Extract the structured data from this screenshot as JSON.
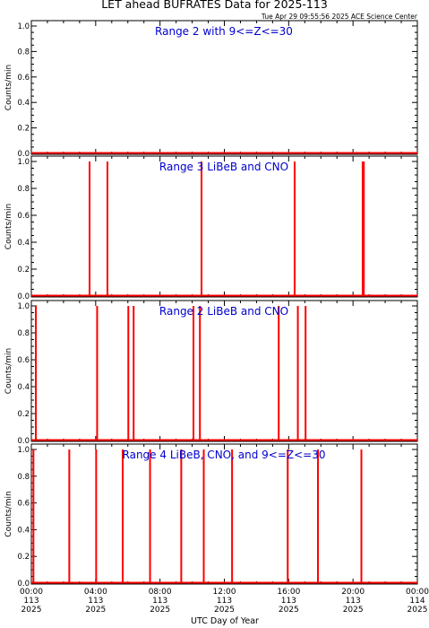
{
  "title": "LET ahead BUFRATES Data for 2025-113",
  "subtitle": "Tue Apr 29 09:55:56 2025 ACE Science Center",
  "xlabel": "UTC Day of Year",
  "colors": {
    "trace": "#ff0000",
    "label": "#0000cc",
    "axis": "#000000"
  },
  "x_ticks": [
    {
      "hours": 0,
      "time": "00:00",
      "doy": "113",
      "year": "2025"
    },
    {
      "hours": 4,
      "time": "04:00",
      "doy": "113",
      "year": "2025"
    },
    {
      "hours": 8,
      "time": "08:00",
      "doy": "113",
      "year": "2025"
    },
    {
      "hours": 12,
      "time": "12:00",
      "doy": "113",
      "year": "2025"
    },
    {
      "hours": 16,
      "time": "16:00",
      "doy": "113",
      "year": "2025"
    },
    {
      "hours": 20,
      "time": "20:00",
      "doy": "113",
      "year": "2025"
    },
    {
      "hours": 24,
      "time": "00:00",
      "doy": "114",
      "year": "2025"
    }
  ],
  "chart_data": [
    {
      "type": "line",
      "label": "Range 2 with 9<=Z<=30",
      "ylabel": "Counts/min",
      "xlim": [
        0,
        24
      ],
      "ylim": [
        0,
        1
      ],
      "yticks": [
        "0.0",
        "0.2",
        "0.4",
        "0.6",
        "0.8",
        "1.0"
      ],
      "spikes_hours": []
    },
    {
      "type": "line",
      "label": "Range 3 LiBeB and CNO",
      "ylabel": "Counts/min",
      "xlim": [
        0,
        24
      ],
      "ylim": [
        0,
        1
      ],
      "yticks": [
        "0.0",
        "0.2",
        "0.4",
        "0.6",
        "0.8",
        "1.0"
      ],
      "spikes_hours": [
        3.62,
        4.73,
        10.58,
        16.37,
        20.6,
        20.67
      ]
    },
    {
      "type": "line",
      "label": "Range 2 LiBeB and CNO",
      "ylabel": "Counts/min",
      "xlim": [
        0,
        24
      ],
      "ylim": [
        0,
        1
      ],
      "yticks": [
        "0.0",
        "0.2",
        "0.4",
        "0.6",
        "0.8",
        "1.0"
      ],
      "spikes_hours": [
        0.28,
        4.09,
        6.03,
        6.36,
        10.08,
        10.48,
        15.38,
        16.57,
        17.05
      ]
    },
    {
      "type": "line",
      "label": "Range 4 LiBeB, CNO, and 9<=Z<=30",
      "ylabel": "Counts/min",
      "xlim": [
        0,
        24
      ],
      "ylim": [
        0,
        1
      ],
      "yticks": [
        "0.0",
        "0.2",
        "0.4",
        "0.6",
        "0.8",
        "1.0"
      ],
      "spikes_hours": [
        0.13,
        2.36,
        4.03,
        5.68,
        7.38,
        9.32,
        10.72,
        12.48,
        15.94,
        17.82,
        20.52
      ]
    }
  ]
}
